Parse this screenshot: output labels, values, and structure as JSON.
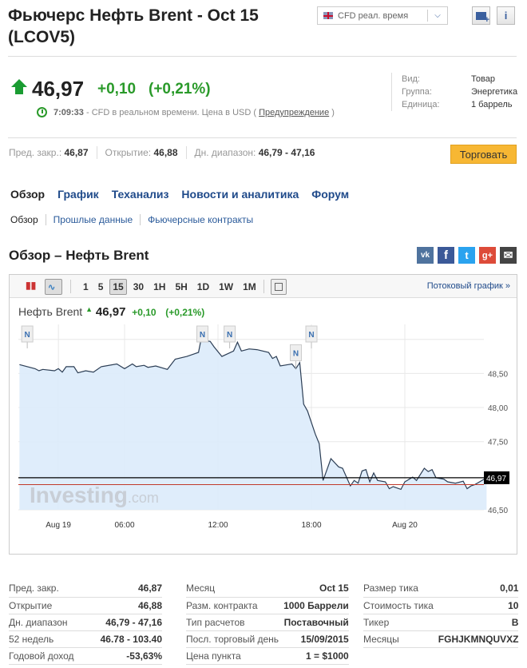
{
  "header": {
    "title": "Фьючерс Нефть Brent - Oct 15 (LCOV5)",
    "dropdown": "CFD реал. время",
    "add_portfolio_icon": "folder-plus-icon",
    "info_icon": "info-icon"
  },
  "quote": {
    "price": "46,97",
    "change": "+0,10",
    "change_pct": "(+0,21%)",
    "direction": "up",
    "time": "7:09:33",
    "note": " - CFD в реальном времени. Цена в USD ( ",
    "warning_link": "Предупреждение",
    "note_end": " )"
  },
  "info": [
    {
      "label": "Вид:",
      "value": "Товар"
    },
    {
      "label": "Группа:",
      "value": "Энергетика"
    },
    {
      "label": "Единица:",
      "value": "1 баррель"
    }
  ],
  "stats": [
    {
      "label": "Пред. закр.:",
      "value": "46,87"
    },
    {
      "label": "Открытие:",
      "value": "46,88"
    },
    {
      "label": "Дн. диапазон:",
      "value": "46,79 - 47,16"
    }
  ],
  "trade_button": "Торговать",
  "tabs": [
    "Обзор",
    "График",
    "Теханализ",
    "Новости и аналитика",
    "Форум"
  ],
  "subtabs": [
    "Обзор",
    "Прошлые данные",
    "Фьючерсные контракты"
  ],
  "section_title": "Обзор – Нефть Brent",
  "social": [
    "vk",
    "f",
    "t",
    "g+",
    "mail"
  ],
  "chart_toolbar": {
    "intervals": [
      "1",
      "5",
      "15",
      "30",
      "1H",
      "5H",
      "1D",
      "1W",
      "1M"
    ],
    "selected": "15",
    "stream_link": "Потоковый график »"
  },
  "chart_header": {
    "name": "Нефть Brent",
    "price": "46,97",
    "change": "+0,10",
    "change_pct": "(+0,21%)"
  },
  "colors": {
    "up": "#2a9a2a",
    "accent": "#1f4a8a",
    "trade": "#f7b733",
    "area": "#dcebfb",
    "line": "#2c3e55",
    "prev_close_line": "#c0392b"
  },
  "chart_data": {
    "type": "area",
    "watermark": "Investing.com",
    "ylim": [
      46.5,
      49.22
    ],
    "y_ticks": [
      "48,50",
      "48,00",
      "47,50",
      "46,50"
    ],
    "y_tick_values": [
      48.5,
      48.0,
      47.5,
      46.5
    ],
    "x_ticks": [
      {
        "label": "Aug 19",
        "at": "08-19 01:45"
      },
      {
        "label": "06:00",
        "at": "08-19 06:00"
      },
      {
        "label": "12:00",
        "at": "08-19 12:00"
      },
      {
        "label": "18:00",
        "at": "08-19 18:00"
      },
      {
        "label": "Aug 20",
        "at": "08-20 00:00"
      }
    ],
    "current": {
      "value": 46.97,
      "label": "46,97"
    },
    "prev_close": 46.87,
    "news_markers": [
      "08-18 23:45",
      "08-19 11:00",
      "08-19 12:45",
      "08-19 17:00",
      "08-19 18:00"
    ],
    "points": [
      [
        "08-18 23:15",
        48.63
      ],
      [
        "08-19 00:15",
        48.57
      ],
      [
        "08-19 00:30",
        48.54
      ],
      [
        "08-19 00:45",
        48.56
      ],
      [
        "08-19 01:30",
        48.54
      ],
      [
        "08-19 01:45",
        48.57
      ],
      [
        "08-19 02:00",
        48.52
      ],
      [
        "08-19 02:15",
        48.6
      ],
      [
        "08-19 02:45",
        48.6
      ],
      [
        "08-19 03:00",
        48.51
      ],
      [
        "08-19 03:30",
        48.54
      ],
      [
        "08-19 04:00",
        48.52
      ],
      [
        "08-19 04:30",
        48.6
      ],
      [
        "08-19 05:30",
        48.64
      ],
      [
        "08-19 06:00",
        48.57
      ],
      [
        "08-19 06:30",
        48.64
      ],
      [
        "08-19 06:45",
        48.6
      ],
      [
        "08-19 07:15",
        48.62
      ],
      [
        "08-19 07:30",
        48.59
      ],
      [
        "08-19 08:00",
        48.61
      ],
      [
        "08-19 08:45",
        48.56
      ],
      [
        "08-19 09:15",
        48.71
      ],
      [
        "08-19 10:00",
        48.75
      ],
      [
        "08-19 10:30",
        48.79
      ],
      [
        "08-19 10:45",
        48.81
      ],
      [
        "08-19 11:00",
        49.1
      ],
      [
        "08-19 11:15",
        48.98
      ],
      [
        "08-19 11:30",
        48.97
      ],
      [
        "08-19 11:45",
        48.89
      ],
      [
        "08-19 12:15",
        48.75
      ],
      [
        "08-19 13:00",
        48.83
      ],
      [
        "08-19 13:15",
        48.96
      ],
      [
        "08-19 13:30",
        48.83
      ],
      [
        "08-19 14:00",
        48.86
      ],
      [
        "08-19 14:30",
        48.85
      ],
      [
        "08-19 15:15",
        48.81
      ],
      [
        "08-19 15:30",
        48.72
      ],
      [
        "08-19 15:45",
        48.75
      ],
      [
        "08-19 16:00",
        48.61
      ],
      [
        "08-19 16:30",
        48.63
      ],
      [
        "08-19 16:45",
        48.64
      ],
      [
        "08-19 17:00",
        48.57
      ],
      [
        "08-19 17:15",
        48.66
      ],
      [
        "08-19 17:30",
        48.05
      ],
      [
        "08-19 17:45",
        47.95
      ],
      [
        "08-19 18:15",
        47.61
      ],
      [
        "08-19 18:30",
        47.47
      ],
      [
        "08-19 18:45",
        46.93
      ],
      [
        "08-19 19:15",
        47.25
      ],
      [
        "08-19 19:45",
        47.13
      ],
      [
        "08-19 20:00",
        47.11
      ],
      [
        "08-19 20:30",
        46.85
      ],
      [
        "08-19 20:45",
        46.93
      ],
      [
        "08-19 21:00",
        46.89
      ],
      [
        "08-19 21:15",
        47.07
      ],
      [
        "08-19 21:30",
        47.09
      ],
      [
        "08-19 21:45",
        46.91
      ],
      [
        "08-19 22:00",
        47.04
      ],
      [
        "08-19 22:15",
        46.93
      ],
      [
        "08-19 22:45",
        46.91
      ],
      [
        "08-19 23:00",
        46.81
      ],
      [
        "08-19 23:15",
        46.84
      ],
      [
        "08-19 23:45",
        46.8
      ],
      [
        "08-20 00:00",
        46.91
      ],
      [
        "08-20 00:30",
        46.98
      ],
      [
        "08-20 00:45",
        46.93
      ],
      [
        "08-20 01:15",
        47.11
      ],
      [
        "08-20 01:30",
        47.06
      ],
      [
        "08-20 01:45",
        47.09
      ],
      [
        "08-20 02:00",
        46.97
      ],
      [
        "08-20 02:30",
        46.95
      ],
      [
        "08-20 02:45",
        46.91
      ],
      [
        "08-20 03:15",
        46.89
      ],
      [
        "08-20 03:45",
        46.92
      ],
      [
        "08-20 04:00",
        46.81
      ],
      [
        "08-20 04:15",
        46.85
      ],
      [
        "08-20 04:30",
        46.87
      ],
      [
        "08-20 05:15",
        46.97
      ]
    ]
  },
  "details": [
    [
      {
        "label": "Пред. закр.",
        "value": "46,87"
      },
      {
        "label": "Открытие",
        "value": "46,88"
      },
      {
        "label": "Дн. диапазон",
        "value": "46,79 - 47,16"
      },
      {
        "label": "52 недель",
        "value": "46.78 - 103.40"
      },
      {
        "label": "Годовой доход",
        "value": "-53,63%"
      }
    ],
    [
      {
        "label": "Месяц",
        "value": "Oct 15"
      },
      {
        "label": "Разм. контракта",
        "value": "1000 Баррели"
      },
      {
        "label": "Тип расчетов",
        "value": "Поставочный"
      },
      {
        "label": "Посл. торговый день",
        "value": "15/09/2015"
      },
      {
        "label": "Цена пункта",
        "value": "1 = $1000"
      }
    ],
    [
      {
        "label": "Размер тика",
        "value": "0,01"
      },
      {
        "label": "Стоимость тика",
        "value": "10"
      },
      {
        "label": "Тикер",
        "value": "B"
      },
      {
        "label": "Месяцы",
        "value": "FGHJKMNQUVXZ"
      }
    ]
  ]
}
